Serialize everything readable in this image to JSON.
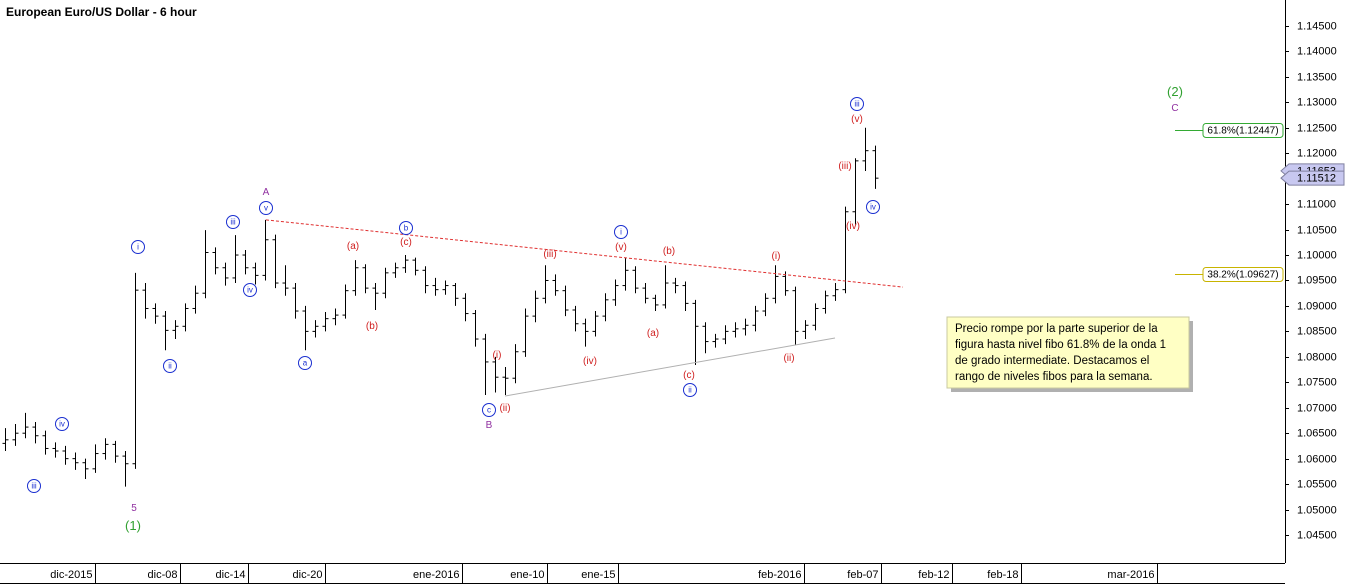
{
  "chart_data": {
    "type": "ohlc",
    "title": "European Euro/US Dollar - 6 hour",
    "bar_color": "#000000",
    "xlim": [
      -0.5,
      128
    ],
    "ylim": [
      1.0395,
      1.1501
    ],
    "xticks": [
      {
        "value": 9,
        "label": "dic-2015"
      },
      {
        "value": 17.5,
        "label": "dic-08"
      },
      {
        "value": 24.3,
        "label": "dic-14"
      },
      {
        "value": 32,
        "label": "dic-20"
      },
      {
        "value": 45.7,
        "label": "ene-2016"
      },
      {
        "value": 54.2,
        "label": "ene-10"
      },
      {
        "value": 61.3,
        "label": "ene-15"
      },
      {
        "value": 79.9,
        "label": "feb-2016"
      },
      {
        "value": 87.6,
        "label": "feb-07"
      },
      {
        "value": 94.7,
        "label": "feb-12"
      },
      {
        "value": 101.6,
        "label": "feb-18"
      },
      {
        "value": 115.2,
        "label": "mar-2016"
      }
    ],
    "yticks": [
      {
        "value": 1.045,
        "label": "1.04500"
      },
      {
        "value": 1.05,
        "label": "1.05000"
      },
      {
        "value": 1.055,
        "label": "1.05500"
      },
      {
        "value": 1.06,
        "label": "1.06000"
      },
      {
        "value": 1.065,
        "label": "1.06500"
      },
      {
        "value": 1.07,
        "label": "1.07000"
      },
      {
        "value": 1.075,
        "label": "1.07500"
      },
      {
        "value": 1.08,
        "label": "1.08000"
      },
      {
        "value": 1.085,
        "label": "1.08500"
      },
      {
        "value": 1.09,
        "label": "1.09000"
      },
      {
        "value": 1.095,
        "label": "1.09500"
      },
      {
        "value": 1.1,
        "label": "1.10000"
      },
      {
        "value": 1.105,
        "label": "1.10500"
      },
      {
        "value": 1.11,
        "label": "1.11000"
      },
      {
        "value": 1.115,
        "label": "1.11500"
      },
      {
        "value": 1.12,
        "label": "1.12000"
      },
      {
        "value": 1.125,
        "label": "1.12500"
      },
      {
        "value": 1.13,
        "label": "1.13000"
      },
      {
        "value": 1.135,
        "label": "1.13500"
      },
      {
        "value": 1.14,
        "label": "1.14000"
      },
      {
        "value": 1.145,
        "label": "1.14500"
      }
    ],
    "open": [
      1.063,
      1.0637,
      1.065,
      1.0662,
      1.0645,
      1.062,
      1.0615,
      1.06,
      1.0592,
      1.058,
      1.061,
      1.0628,
      1.0605,
      1.059,
      1.0931,
      1.0895,
      1.088,
      1.0852,
      1.086,
      1.0895,
      1.0925,
      1.1005,
      1.0975,
      1.0955,
      1.1,
      1.0975,
      1.096,
      1.103,
      1.0945,
      1.0935,
      1.089,
      1.085,
      1.086,
      1.0875,
      1.0882,
      1.093,
      1.0975,
      1.0935,
      1.0925,
      1.0965,
      1.0975,
      1.099,
      1.097,
      1.094,
      1.0932,
      1.094,
      1.0915,
      1.0885,
      1.0835,
      1.079,
      1.076,
      1.0758,
      1.081,
      1.088,
      1.0915,
      1.095,
      1.093,
      1.0892,
      1.0865,
      1.085,
      1.088,
      1.0912,
      1.094,
      1.097,
      1.0935,
      1.0915,
      1.0902,
      1.0945,
      1.094,
      1.0905,
      1.086,
      1.083,
      1.0835,
      1.085,
      1.0855,
      1.0862,
      1.089,
      1.0915,
      1.0958,
      1.093,
      1.085,
      1.0862,
      1.0895,
      1.092,
      1.0932,
      1.1085,
      1.1185,
      1.1205
    ],
    "high": [
      1.066,
      1.0668,
      1.069,
      1.0672,
      1.0655,
      1.0632,
      1.0625,
      1.0612,
      1.06,
      1.0628,
      1.064,
      1.0635,
      1.0615,
      1.0965,
      1.0945,
      1.0905,
      1.089,
      1.0872,
      1.0905,
      1.094,
      1.1049,
      1.1015,
      1.0985,
      1.1039,
      1.101,
      1.0985,
      1.1069,
      1.104,
      1.098,
      1.0945,
      1.09,
      1.0872,
      1.0888,
      1.0895,
      1.0942,
      1.099,
      1.0982,
      1.0945,
      1.0975,
      1.0985,
      1.1,
      1.0995,
      1.0978,
      1.0955,
      1.095,
      1.0945,
      1.0925,
      1.0892,
      1.0845,
      1.08,
      1.078,
      1.0825,
      1.0895,
      1.093,
      1.098,
      1.0962,
      1.094,
      1.09,
      1.0875,
      1.089,
      1.0925,
      1.0952,
      1.0994,
      1.0978,
      1.0945,
      1.0922,
      1.098,
      1.0955,
      1.0948,
      1.0912,
      1.0868,
      1.0845,
      1.0862,
      1.0868,
      1.0875,
      1.09,
      1.0925,
      1.098,
      1.0968,
      1.0938,
      1.0872,
      1.0905,
      1.093,
      1.0945,
      1.1095,
      1.119,
      1.125,
      1.1215
    ],
    "low": [
      1.0615,
      1.0625,
      1.064,
      1.063,
      1.0608,
      1.0602,
      1.0588,
      1.0578,
      1.056,
      1.0572,
      1.0598,
      1.0592,
      1.0545,
      1.058,
      1.0875,
      1.0865,
      1.0813,
      1.0835,
      1.085,
      1.0885,
      1.0915,
      1.0962,
      1.094,
      1.0945,
      1.0962,
      1.0942,
      1.095,
      1.0935,
      1.092,
      1.0875,
      1.0813,
      1.0838,
      1.085,
      1.0862,
      1.0875,
      1.092,
      1.0925,
      1.0892,
      1.0915,
      1.0955,
      1.0965,
      1.096,
      1.0925,
      1.092,
      1.0922,
      1.09,
      1.087,
      1.082,
      1.0725,
      1.073,
      1.0725,
      1.0748,
      1.08,
      1.0868,
      1.0905,
      1.092,
      1.088,
      1.085,
      1.082,
      1.084,
      1.087,
      1.09,
      1.093,
      1.0925,
      1.0905,
      1.089,
      1.0895,
      1.0925,
      1.089,
      1.0784,
      1.0807,
      1.0818,
      1.0825,
      1.0838,
      1.0842,
      1.085,
      1.088,
      1.0905,
      1.092,
      1.0823,
      1.0835,
      1.0852,
      1.0885,
      1.091,
      1.0925,
      1.106,
      1.1165,
      1.113
    ],
    "close": [
      1.0637,
      1.065,
      1.0662,
      1.0645,
      1.062,
      1.0615,
      1.06,
      1.0592,
      1.058,
      1.061,
      1.0628,
      1.0605,
      1.059,
      1.0931,
      1.0895,
      1.088,
      1.0852,
      1.086,
      1.0895,
      1.0925,
      1.1005,
      1.0975,
      1.0955,
      1.1,
      1.0975,
      1.096,
      1.103,
      1.0945,
      1.0935,
      1.089,
      1.085,
      1.086,
      1.0875,
      1.0882,
      1.093,
      1.0975,
      1.0935,
      1.0925,
      1.0965,
      1.0975,
      1.099,
      1.097,
      1.094,
      1.0932,
      1.094,
      1.0915,
      1.0885,
      1.0835,
      1.079,
      1.076,
      1.0758,
      1.081,
      1.088,
      1.0915,
      1.095,
      1.093,
      1.0892,
      1.0865,
      1.085,
      1.088,
      1.0912,
      1.094,
      1.097,
      1.0935,
      1.0915,
      1.0902,
      1.0945,
      1.094,
      1.0905,
      1.086,
      1.083,
      1.0835,
      1.085,
      1.0855,
      1.0862,
      1.089,
      1.0915,
      1.0958,
      1.093,
      1.085,
      1.0862,
      1.0895,
      1.092,
      1.0932,
      1.1085,
      1.1185,
      1.1205,
      1.1151
    ],
    "trendlines": [
      {
        "x": [
          26.1,
          89.8
        ],
        "y": [
          1.1069,
          1.0937
        ],
        "color": "#e03030",
        "dashed": true
      },
      {
        "x": [
          50,
          83
        ],
        "y": [
          1.0723,
          1.0837
        ],
        "color": "#b0b0b0",
        "dashed": false
      }
    ],
    "fib_levels": [
      {
        "value": 1.12447,
        "label": "61.8%(1.12447)",
        "color": "#33aa33"
      },
      {
        "value": 1.09627,
        "label": "38.2%(1.09627)",
        "color": "#c8b400"
      }
    ],
    "last_prices": [
      {
        "value": 1.11653,
        "label": "1.11653"
      },
      {
        "value": 1.11512,
        "label": "1.11512"
      }
    ],
    "annotations": [
      {
        "text": "iii",
        "color": "#1a2fd0",
        "circled": true
      },
      {
        "text": "iv",
        "color": "#1a2fd0",
        "circled": true
      },
      {
        "text": "i",
        "color": "#1a2fd0",
        "circled": true
      },
      {
        "text": "ii",
        "color": "#1a2fd0",
        "circled": true
      },
      {
        "text": "iii",
        "color": "#1a2fd0",
        "circled": true
      },
      {
        "text": "iv",
        "color": "#1a2fd0",
        "circled": true
      },
      {
        "text": "v",
        "color": "#1a2fd0",
        "circled": true
      },
      {
        "text": "a",
        "color": "#1a2fd0",
        "circled": true
      },
      {
        "text": "b",
        "color": "#1a2fd0",
        "circled": true
      },
      {
        "text": "c",
        "color": "#1a2fd0",
        "circled": true
      },
      {
        "text": "i",
        "color": "#1a2fd0",
        "circled": true
      },
      {
        "text": "ii",
        "color": "#1a2fd0",
        "circled": true
      },
      {
        "text": "iii",
        "color": "#1a2fd0",
        "circled": true
      },
      {
        "text": "iv",
        "color": "#1a2fd0",
        "circled": true
      },
      {
        "text": "(a)",
        "color": "#d02020",
        "circled": false
      },
      {
        "text": "(b)",
        "color": "#d02020",
        "circled": false
      },
      {
        "text": "(c)",
        "color": "#d02020",
        "circled": false
      },
      {
        "text": "(iii)",
        "color": "#d02020",
        "circled": false
      },
      {
        "text": "(i)",
        "color": "#d02020",
        "circled": false
      },
      {
        "text": "(ii)",
        "color": "#d02020",
        "circled": false
      },
      {
        "text": "(iv)",
        "color": "#d02020",
        "circled": false
      },
      {
        "text": "(v)",
        "color": "#d02020",
        "circled": false
      },
      {
        "text": "(b)",
        "color": "#d02020",
        "circled": false
      },
      {
        "text": "(a)",
        "color": "#d02020",
        "circled": false
      },
      {
        "text": "(c)",
        "color": "#d02020",
        "circled": false
      },
      {
        "text": "(i)",
        "color": "#d02020",
        "circled": false
      },
      {
        "text": "(ii)",
        "color": "#d02020",
        "circled": false
      },
      {
        "text": "(v)",
        "color": "#d02020",
        "circled": false
      },
      {
        "text": "(iii)",
        "color": "#d02020",
        "circled": false
      },
      {
        "text": "(iv)",
        "color": "#d02020",
        "circled": false
      },
      {
        "text": "A",
        "color": "#9030a0",
        "circled": false
      },
      {
        "text": "B",
        "color": "#9030a0",
        "circled": false
      },
      {
        "text": "5",
        "color": "#9030a0",
        "circled": false
      },
      {
        "text": "C",
        "color": "#9030a0",
        "circled": false
      },
      {
        "text": "(1)",
        "color": "#30a030",
        "circled": false
      },
      {
        "text": "(2)",
        "color": "#30a030",
        "circled": false
      }
    ],
    "note": [
      "Precio rompe por la parte superior de la",
      "figura hasta nivel fibo 61.8% de la onda 1",
      "de grado intermediate.  Destacamos el",
      "rango de niveles fibos para la semana."
    ]
  }
}
